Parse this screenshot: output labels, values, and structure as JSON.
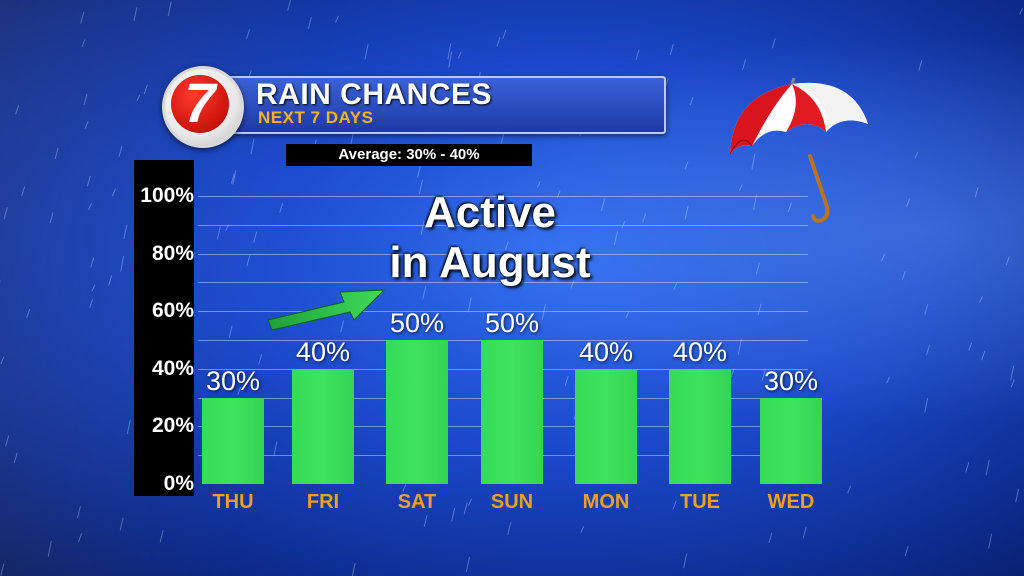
{
  "header": {
    "title": "RAIN CHANCES",
    "subtitle": "NEXT 7 DAYS",
    "average": "Average: 30% - 40%",
    "logo_text": "7"
  },
  "annotation": {
    "line1": "Active",
    "line2": "in August"
  },
  "icons": {
    "umbrella": "umbrella-icon",
    "arrow": "arrow-up-right-icon"
  },
  "colors": {
    "bar": "#3ee35c",
    "category_label": "#f0a020",
    "background": "#1a47c8",
    "logo_red": "#d3180f"
  },
  "chart_data": {
    "type": "bar",
    "title": "RAIN CHANCES",
    "subtitle": "NEXT 7 DAYS",
    "categories": [
      "THU",
      "FRI",
      "SAT",
      "SUN",
      "MON",
      "TUE",
      "WED"
    ],
    "values": [
      30,
      40,
      50,
      50,
      40,
      40,
      30
    ],
    "value_labels": [
      "30%",
      "40%",
      "50%",
      "50%",
      "40%",
      "40%",
      "30%"
    ],
    "yticks": [
      "0%",
      "20%",
      "40%",
      "60%",
      "80%",
      "100%"
    ],
    "ylim": [
      0,
      100
    ],
    "grid": true,
    "legend": "none"
  }
}
